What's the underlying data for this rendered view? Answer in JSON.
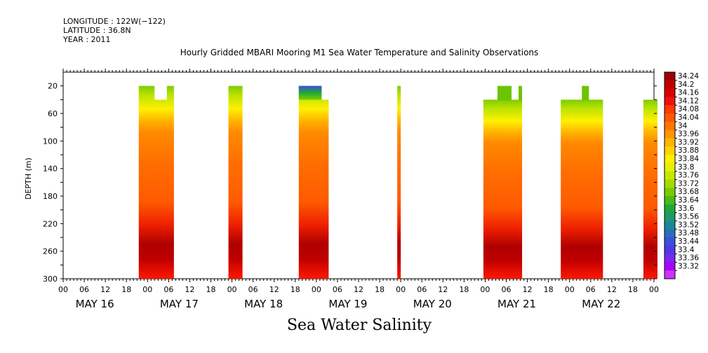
{
  "meta": {
    "longitude": "LONGITUDE : 122W(−122)",
    "latitude": "LATITUDE : 36.8N",
    "year": "YEAR : 2011"
  },
  "chart_data": {
    "type": "heatmap",
    "title": "Hourly Gridded MBARI Mooring M1 Sea Water Temperature and Salinity Observations",
    "bottom_title": "Sea Water Salinity",
    "ylabel": "DEPTH (m)",
    "y_axis": {
      "range": [
        0,
        300
      ],
      "inverted": true,
      "ticks": [
        20,
        60,
        100,
        140,
        180,
        220,
        260,
        300
      ]
    },
    "x_axis": {
      "hour_ticks": [
        "00",
        "06",
        "12",
        "18",
        "00",
        "06",
        "12",
        "18",
        "00",
        "06",
        "12",
        "18",
        "00",
        "06",
        "12",
        "18",
        "00",
        "06",
        "12",
        "18",
        "00",
        "06",
        "12",
        "18",
        "00",
        "06",
        "12",
        "18",
        "00"
      ],
      "day_labels": [
        "MAY 16",
        "MAY 17",
        "MAY 18",
        "MAY 19",
        "MAY 20",
        "MAY 21",
        "MAY 22"
      ],
      "range_hours": [
        0,
        168
      ]
    },
    "colorbar": {
      "levels": [
        34.24,
        34.2,
        34.16,
        34.12,
        34.08,
        34.04,
        34,
        33.96,
        33.92,
        33.88,
        33.84,
        33.8,
        33.76,
        33.72,
        33.68,
        33.64,
        33.6,
        33.56,
        33.52,
        33.48,
        33.44,
        33.4,
        33.36,
        33.32
      ],
      "colors": [
        "#a00000",
        "#bf0000",
        "#d80000",
        "#ee1010",
        "#ff3a00",
        "#ff5800",
        "#ff7500",
        "#ff9500",
        "#ffb400",
        "#ffd200",
        "#ffee00",
        "#e8f000",
        "#c4e800",
        "#a0dc00",
        "#78cc00",
        "#48bc18",
        "#20a838",
        "#1c9a6a",
        "#1c8896",
        "#2a6ec0",
        "#3a50dc",
        "#5038e8",
        "#7a28ee",
        "#aa00ff",
        "#cc33ff"
      ]
    },
    "segments": [
      {
        "start_hour": 21.5,
        "end_hour": 31.5,
        "top_depth": 20,
        "notches": [
          [
            26,
            29.5,
            40
          ]
        ]
      },
      {
        "start_hour": 47,
        "end_hour": 51,
        "top_depth": 20
      },
      {
        "start_hour": 67,
        "end_hour": 75.5,
        "top_depth": 20,
        "blue_top": true,
        "step": [
          [
            73.5,
            75.5,
            40
          ]
        ]
      },
      {
        "start_hour": 95,
        "end_hour": 96,
        "top_depth": 20
      },
      {
        "start_hour": 119.5,
        "end_hour": 130.5,
        "top_depth": 40,
        "raised": [
          [
            123.5,
            127.5,
            20
          ],
          [
            129.5,
            130.5,
            20
          ]
        ]
      },
      {
        "start_hour": 141.5,
        "end_hour": 153.5,
        "top_depth": 40,
        "raised": [
          [
            147.5,
            149.5,
            20
          ]
        ]
      },
      {
        "start_hour": 165,
        "end_hour": 169,
        "top_depth": 40
      }
    ]
  }
}
